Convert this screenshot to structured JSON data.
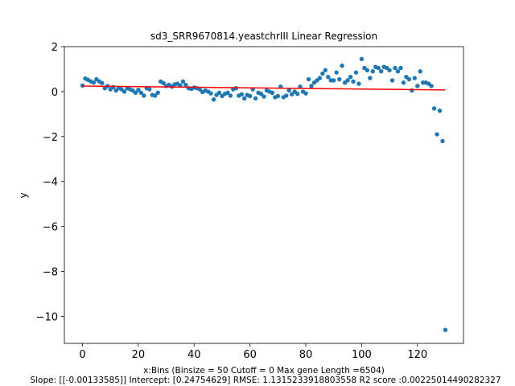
{
  "chart_data": {
    "type": "scatter",
    "title": "sd3_SRR9670814.yeastchrIII Linear Regression",
    "xlabel": "x:Bins (Binsize = 50 Cutoff = 0 Max gene Length =6504)",
    "ylabel": "y",
    "caption": "Slope: [[-0.00133585]] Intercept: [0.24754629] RMSE: 1.1315233918803558 R2 score :0.0022501449028232​7",
    "xlim": [
      -6.5,
      136.5
    ],
    "ylim": [
      -11.2,
      2.0
    ],
    "xticks": [
      0,
      20,
      40,
      60,
      80,
      100,
      120
    ],
    "xtick_labels": [
      "0",
      "20",
      "40",
      "60",
      "80",
      "100",
      "120"
    ],
    "yticks": [
      2,
      0,
      -2,
      -4,
      -6,
      -8,
      -10
    ],
    "ytick_labels": [
      "2",
      "0",
      "−2",
      "−4",
      "−6",
      "−8",
      "−10"
    ],
    "grid": false,
    "colors": {
      "points": "#1f77b4",
      "regression_line": "#ff0000"
    },
    "regression": {
      "slope": -0.00133585,
      "intercept": 0.24754629
    },
    "series": [
      {
        "x": [
          0,
          1,
          2,
          3,
          4,
          5,
          6,
          7,
          8,
          9,
          10,
          11,
          12,
          13,
          14,
          15,
          16,
          17,
          18,
          19,
          20,
          21,
          22,
          23,
          24,
          25,
          26,
          27,
          28,
          29,
          30,
          31,
          32,
          33,
          34,
          35,
          36,
          37,
          38,
          39,
          40,
          41,
          42,
          43,
          44,
          45,
          46,
          47,
          48,
          49,
          50,
          51,
          52,
          53,
          54,
          55,
          56,
          57,
          58,
          59,
          60,
          61,
          62,
          63,
          64,
          65,
          66,
          67,
          68,
          69,
          70,
          71,
          72,
          73,
          74,
          75,
          76,
          77,
          78,
          79,
          80,
          81,
          82,
          83,
          84,
          85,
          86,
          87,
          88,
          89,
          90,
          91,
          92,
          93,
          94,
          95,
          96,
          97,
          98,
          99,
          100,
          101,
          102,
          103,
          104,
          105,
          106,
          107,
          108,
          109,
          110,
          111,
          112,
          113,
          114,
          115,
          116,
          117,
          118,
          119,
          120,
          121,
          122,
          123,
          124,
          125,
          126,
          127,
          128,
          129,
          130
        ],
        "y": [
          0.27,
          0.58,
          0.52,
          0.45,
          0.4,
          0.55,
          0.45,
          0.38,
          0.15,
          0.25,
          0.1,
          0.2,
          0.05,
          0.15,
          0.1,
          0.0,
          0.15,
          0.1,
          0.05,
          -0.05,
          0.08,
          -0.05,
          -0.18,
          0.15,
          0.1,
          -0.15,
          -0.18,
          -0.05,
          0.45,
          0.38,
          0.25,
          0.3,
          0.22,
          0.32,
          0.35,
          0.28,
          0.45,
          0.3,
          0.15,
          0.12,
          0.18,
          0.15,
          0.1,
          -0.02,
          0.05,
          0.0,
          -0.08,
          -0.35,
          -0.15,
          -0.05,
          -0.2,
          -0.1,
          -0.05,
          -0.18,
          0.1,
          0.15,
          -0.18,
          -0.12,
          -0.3,
          -0.15,
          -0.2,
          0.1,
          -0.3,
          -0.05,
          -0.1,
          -0.22,
          0.05,
          0.0,
          -0.05,
          -0.25,
          -0.2,
          0.22,
          -0.25,
          -0.18,
          0.05,
          -0.12,
          0.0,
          -0.1,
          0.22,
          0.0,
          -0.08,
          0.55,
          0.25,
          0.4,
          0.5,
          0.6,
          0.8,
          0.95,
          0.65,
          0.5,
          0.5,
          0.85,
          0.55,
          1.15,
          0.4,
          0.5,
          0.65,
          0.45,
          0.85,
          0.35,
          1.45,
          1.05,
          0.95,
          0.6,
          0.9,
          1.1,
          1.05,
          0.9,
          1.1,
          1.05,
          0.95,
          0.5,
          1.05,
          0.9,
          1.05,
          0.4,
          0.65,
          0.55,
          0.05,
          0.6,
          0.25,
          0.9,
          0.4,
          0.4,
          0.35,
          0.25,
          -0.75,
          -1.9,
          -0.85,
          -2.2,
          -10.6
        ]
      }
    ]
  }
}
